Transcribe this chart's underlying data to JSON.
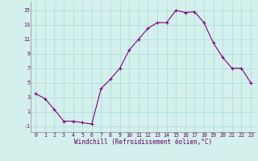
{
  "x": [
    0,
    1,
    2,
    3,
    4,
    5,
    6,
    7,
    8,
    9,
    10,
    11,
    12,
    13,
    14,
    15,
    16,
    17,
    18,
    19,
    20,
    21,
    22,
    23
  ],
  "y": [
    3.5,
    2.8,
    1.3,
    -0.3,
    -0.3,
    -0.5,
    -0.7,
    4.2,
    5.5,
    7.0,
    9.5,
    11.0,
    12.5,
    13.3,
    13.3,
    15.0,
    14.7,
    14.8,
    13.3,
    10.5,
    8.5,
    7.0,
    7.0,
    5.0
  ],
  "line_color": "#800080",
  "marker": "+",
  "marker_size": 3,
  "marker_linewidth": 0.8,
  "bg_color": "#d4f0ec",
  "grid_color": "#aad8d4",
  "xlabel": "Windchill (Refroidissement éolien,°C)",
  "xlabel_fontsize": 5.5,
  "yticks": [
    -1,
    1,
    3,
    5,
    7,
    9,
    11,
    13,
    15
  ],
  "ylim": [
    -1.8,
    16.2
  ],
  "xlim": [
    -0.5,
    23.5
  ],
  "tick_fontsize": 4.8,
  "line_width": 0.8,
  "xtick_labels": [
    "0",
    "1",
    "2",
    "3",
    "4",
    "5",
    "6",
    "7",
    "8",
    "9",
    "10",
    "11",
    "12",
    "13",
    "14",
    "15",
    "16",
    "17",
    "18",
    "19",
    "20",
    "21",
    "22",
    "23"
  ]
}
